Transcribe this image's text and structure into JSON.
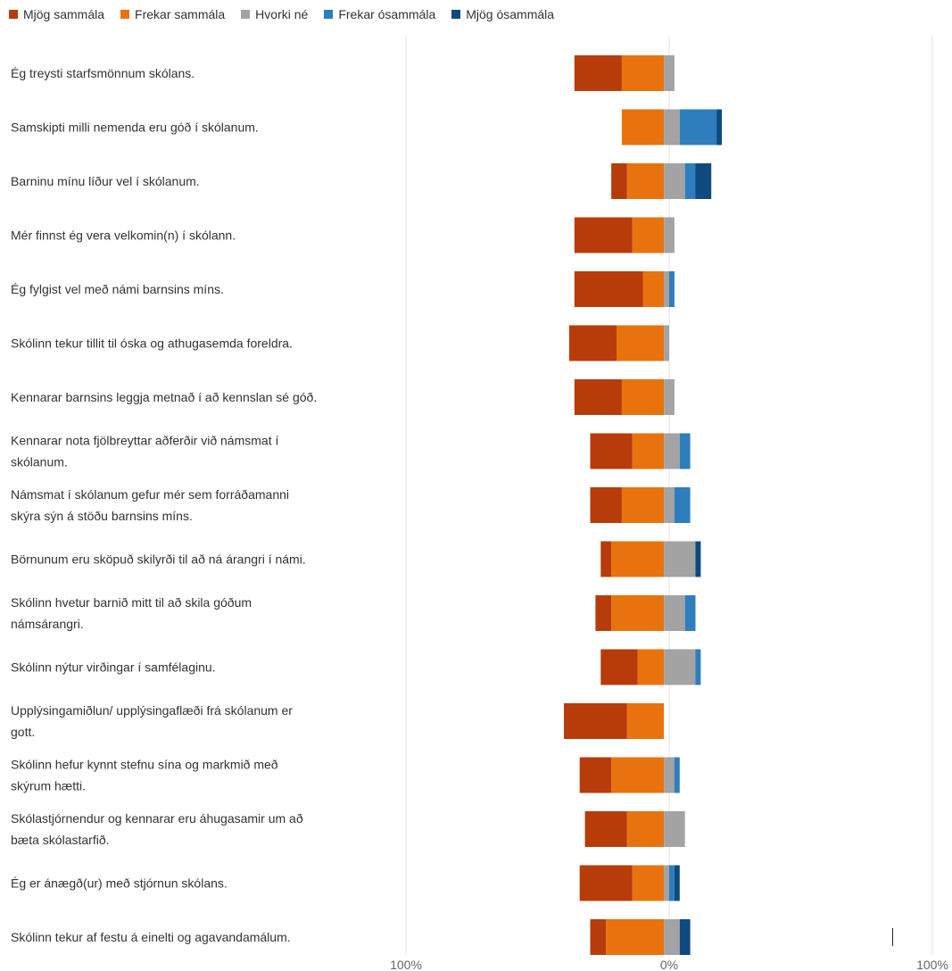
{
  "chart_data": {
    "type": "bar",
    "orientation": "horizontal-diverging",
    "series": [
      {
        "name": "Mjög sammála",
        "color": "#B83C0A",
        "values": [
          18,
          0,
          6,
          22,
          26,
          18,
          18,
          16,
          12,
          4,
          6,
          14,
          24,
          12,
          16,
          20,
          6
        ]
      },
      {
        "name": "Frekar sammála",
        "color": "#E8730E",
        "values": [
          16,
          16,
          14,
          12,
          8,
          18,
          16,
          12,
          16,
          20,
          20,
          10,
          14,
          20,
          14,
          12,
          22
        ]
      },
      {
        "name": "Hvorki né",
        "color": "#A3A3A3",
        "values": [
          4,
          6,
          8,
          4,
          2,
          2,
          4,
          6,
          4,
          12,
          8,
          12,
          0,
          4,
          8,
          2,
          6
        ]
      },
      {
        "name": "Frekar ósammála",
        "color": "#2E7EBE",
        "values": [
          0,
          14,
          4,
          0,
          2,
          0,
          0,
          4,
          6,
          0,
          4,
          2,
          0,
          2,
          0,
          2,
          0
        ]
      },
      {
        "name": "Mjög ósammála",
        "color": "#0E4A7E",
        "values": [
          0,
          2,
          6,
          0,
          0,
          0,
          0,
          0,
          0,
          2,
          0,
          0,
          0,
          0,
          0,
          2,
          4
        ]
      }
    ],
    "categories": [
      [
        "Ég treysti starfsmönnum skólans."
      ],
      [
        "Samskipti milli nemenda eru góð í skólanum."
      ],
      [
        "Barninu mínu líður vel í skólanum."
      ],
      [
        "Mér finnst ég vera velkomin(n) í skólann."
      ],
      [
        "Ég fylgist vel með námi barnsins míns."
      ],
      [
        "Skólinn tekur tillit til óska og athugasemda foreldra."
      ],
      [
        "Kennarar barnsins leggja metnað í að kennslan sé góð."
      ],
      [
        "Kennarar nota fjölbreyttar aðferðir við námsmat í",
        "skólanum."
      ],
      [
        "Námsmat í skólanum gefur mér sem forráðamanni",
        "skýra sýn á stöðu barnsins míns."
      ],
      [
        "Börnunum eru sköpuð skilyrði til að ná árangri í námi."
      ],
      [
        "Skólinn hvetur barnið mitt til að skila góðum",
        "námsárangri."
      ],
      [
        "Skólinn nýtur virðingar í samfélaginu."
      ],
      [
        "Upplýsingamiðlun/ upplýsingaflæði frá skólanum er",
        "gott."
      ],
      [
        "Skólinn hefur kynnt stefnu sína og markmið með",
        "skýrum hætti."
      ],
      [
        "Skólastjórnendur og kennarar eru áhugasamir um að",
        "bæta skólastarfið."
      ],
      [
        "Ég er ánægð(ur) með stjórnun skólans."
      ],
      [
        "Skólinn tekur af festu á einelti og agavandamálum."
      ]
    ],
    "xlim": [
      -100,
      100
    ],
    "x_ticks": [
      "100%",
      "0%",
      "100%"
    ],
    "grid": "vertical",
    "legend": "top"
  }
}
